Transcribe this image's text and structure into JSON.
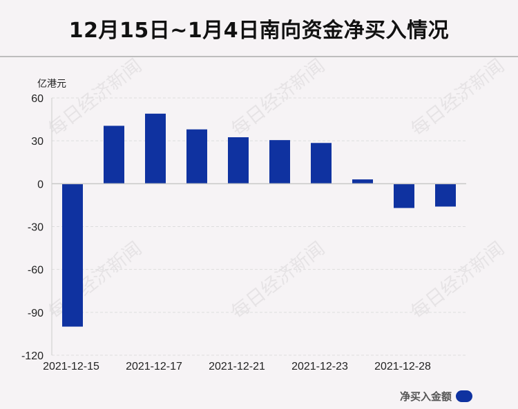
{
  "title": "12月15日~1月4日南向资金净买入情况",
  "watermark_text": "每日经济新闻",
  "colors": {
    "bar": "#0f32a0",
    "background": "#f6f3f5"
  },
  "legend": {
    "label": "净买入金额"
  },
  "chart_data": {
    "type": "bar",
    "title": "12月15日~1月4日南向资金净买入情况",
    "ylabel": "亿港元",
    "xlabel": "",
    "ylim": [
      -120,
      60
    ],
    "yticks": [
      60,
      30,
      0,
      -30,
      -60,
      -90,
      -120
    ],
    "grid": true,
    "legend_position": "bottom-right",
    "categories": [
      "2021-12-15",
      "",
      "2021-12-17",
      "",
      "2021-12-21",
      "",
      "2021-12-23",
      "",
      "2021-12-28",
      ""
    ],
    "series": [
      {
        "name": "净买入金额",
        "values": [
          -100,
          40.5,
          49,
          38,
          32.5,
          30.5,
          28.5,
          3,
          -17,
          -16
        ]
      }
    ]
  }
}
